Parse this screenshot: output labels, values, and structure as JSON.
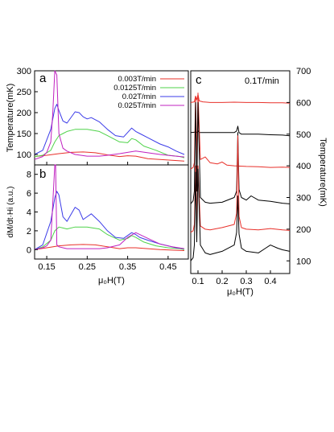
{
  "chart_data": [
    {
      "panel": "a",
      "type": "line",
      "ylabel": "Temperature(mK)",
      "xlim": [
        0.12,
        0.5
      ],
      "ylim": [
        75,
        300
      ],
      "yticks": [
        100,
        150,
        200,
        250,
        300
      ],
      "legend_placement": "top-right",
      "series": [
        {
          "name": "0.003T/min",
          "color": "#e8302a",
          "x": [
            0.12,
            0.15,
            0.18,
            0.21,
            0.24,
            0.27,
            0.3,
            0.33,
            0.35,
            0.37,
            0.4,
            0.43,
            0.46,
            0.49
          ],
          "y": [
            95,
            98,
            102,
            105,
            106,
            104,
            99,
            95,
            97,
            96,
            90,
            88,
            86,
            84
          ]
        },
        {
          "name": "0.0125T/min",
          "color": "#4fd34a",
          "x": [
            0.12,
            0.14,
            0.16,
            0.17,
            0.18,
            0.19,
            0.2,
            0.22,
            0.25,
            0.28,
            0.3,
            0.33,
            0.35,
            0.36,
            0.37,
            0.39,
            0.42,
            0.45,
            0.48,
            0.49
          ],
          "y": [
            95,
            98,
            110,
            130,
            145,
            150,
            155,
            160,
            160,
            155,
            145,
            130,
            128,
            138,
            135,
            120,
            110,
            98,
            95,
            92
          ]
        },
        {
          "name": "0.02T/min",
          "color": "#3b3be8",
          "x": [
            0.12,
            0.14,
            0.16,
            0.17,
            0.175,
            0.18,
            0.19,
            0.2,
            0.22,
            0.23,
            0.24,
            0.25,
            0.26,
            0.28,
            0.3,
            0.32,
            0.34,
            0.36,
            0.37,
            0.38,
            0.4,
            0.43,
            0.45,
            0.47,
            0.49
          ],
          "y": [
            100,
            110,
            160,
            210,
            220,
            205,
            180,
            175,
            202,
            200,
            190,
            185,
            188,
            178,
            160,
            145,
            142,
            163,
            155,
            150,
            140,
            125,
            118,
            108,
            100
          ]
        },
        {
          "name": "0.025T/min",
          "color": "#c020c0",
          "x": [
            0.12,
            0.14,
            0.15,
            0.16,
            0.165,
            0.17,
            0.175,
            0.18,
            0.19,
            0.2,
            0.22,
            0.25,
            0.28,
            0.3,
            0.33,
            0.35,
            0.37,
            0.4,
            0.43,
            0.46,
            0.49
          ],
          "y": [
            88,
            95,
            105,
            130,
            200,
            300,
            290,
            150,
            115,
            108,
            100,
            96,
            96,
            98,
            102,
            105,
            108,
            104,
            100,
            97,
            94
          ]
        }
      ]
    },
    {
      "panel": "b",
      "type": "line",
      "xlabel": "μ₀H(T)",
      "ylabel": "dM/dt·Hi (a.u.)",
      "xlim": [
        0.12,
        0.5
      ],
      "ylim": [
        -1,
        9
      ],
      "yticks": [
        0,
        2,
        4,
        6,
        8
      ],
      "xticks": [
        0.15,
        0.25,
        0.35,
        0.45
      ],
      "series": [
        {
          "name": "0.003T/min",
          "color": "#e8302a",
          "x": [
            0.12,
            0.15,
            0.18,
            0.21,
            0.24,
            0.27,
            0.3,
            0.33,
            0.35,
            0.37,
            0.4,
            0.43,
            0.46,
            0.49
          ],
          "y": [
            0.0,
            0.2,
            0.4,
            0.5,
            0.55,
            0.5,
            0.3,
            0.1,
            0.2,
            0.2,
            0.1,
            0.0,
            -0.05,
            -0.1
          ]
        },
        {
          "name": "0.0125T/min",
          "color": "#4fd34a",
          "x": [
            0.12,
            0.14,
            0.16,
            0.17,
            0.18,
            0.19,
            0.2,
            0.22,
            0.25,
            0.28,
            0.3,
            0.33,
            0.35,
            0.36,
            0.37,
            0.39,
            0.42,
            0.45,
            0.48,
            0.49
          ],
          "y": [
            0.0,
            0.3,
            1.0,
            2.0,
            2.4,
            2.3,
            2.2,
            2.4,
            2.4,
            2.2,
            1.6,
            1.0,
            1.2,
            1.5,
            1.3,
            0.8,
            0.4,
            0.2,
            0.1,
            0.0
          ]
        },
        {
          "name": "0.02T/min",
          "color": "#3b3be8",
          "x": [
            0.12,
            0.14,
            0.16,
            0.17,
            0.175,
            0.18,
            0.19,
            0.2,
            0.22,
            0.23,
            0.24,
            0.25,
            0.26,
            0.28,
            0.3,
            0.32,
            0.34,
            0.36,
            0.37,
            0.38,
            0.4,
            0.43,
            0.45,
            0.47,
            0.49
          ],
          "y": [
            0.0,
            0.5,
            3.0,
            5.5,
            6.2,
            5.8,
            3.5,
            3.0,
            4.5,
            4.2,
            3.2,
            3.5,
            3.8,
            3.0,
            2.0,
            1.3,
            1.2,
            1.8,
            1.6,
            1.3,
            1.0,
            0.6,
            0.4,
            0.2,
            0.1
          ]
        },
        {
          "name": "0.025T/min",
          "color": "#c020c0",
          "x": [
            0.12,
            0.14,
            0.15,
            0.16,
            0.17,
            0.172,
            0.175,
            0.18,
            0.19,
            0.2,
            0.22,
            0.25,
            0.28,
            0.3,
            0.33,
            0.35,
            0.37,
            0.4,
            0.43,
            0.46,
            0.49
          ],
          "y": [
            0.0,
            0.2,
            0.4,
            1.0,
            9.0,
            9.0,
            0.5,
            0.3,
            0.2,
            0.1,
            0.1,
            0.1,
            0.1,
            0.2,
            0.5,
            1.3,
            1.8,
            1.2,
            0.6,
            0.3,
            0.1
          ]
        }
      ]
    },
    {
      "panel": "c",
      "type": "line",
      "annotation": "0.1T/min",
      "xlabel": "μ₀H(T)",
      "ylabel": "Temperature(mK)",
      "xlim": [
        0.07,
        0.48
      ],
      "ylim": [
        60,
        700
      ],
      "xticks": [
        0.1,
        0.2,
        0.3,
        0.4
      ],
      "yticks": [
        100,
        200,
        300,
        400,
        500,
        600,
        700
      ],
      "series": [
        {
          "color": "#e8302a",
          "x": [
            0.07,
            0.085,
            0.09,
            0.095,
            0.1,
            0.105,
            0.12,
            0.15,
            0.2,
            0.25,
            0.3,
            0.35,
            0.4,
            0.45,
            0.48
          ],
          "y": [
            600,
            602,
            620,
            608,
            625,
            605,
            602,
            600,
            600,
            601,
            600,
            600,
            599,
            599,
            598
          ]
        },
        {
          "color": "#000000",
          "x": [
            0.07,
            0.085,
            0.09,
            0.095,
            0.1,
            0.105,
            0.12,
            0.15,
            0.2,
            0.25,
            0.26,
            0.265,
            0.27,
            0.28,
            0.3,
            0.35,
            0.4,
            0.45,
            0.48
          ],
          "y": [
            505,
            506,
            508,
            505,
            510,
            505,
            505,
            505,
            505,
            505,
            510,
            525,
            505,
            500,
            500,
            500,
            498,
            497,
            495
          ]
        },
        {
          "color": "#e8302a",
          "x": [
            0.07,
            0.08,
            0.085,
            0.09,
            0.095,
            0.1,
            0.11,
            0.13,
            0.15,
            0.18,
            0.2,
            0.22,
            0.25,
            0.3,
            0.35,
            0.4,
            0.45,
            0.48
          ],
          "y": [
            390,
            395,
            410,
            620,
            410,
            630,
            420,
            428,
            410,
            406,
            412,
            402,
            400,
            398,
            397,
            395,
            396,
            395
          ]
        },
        {
          "color": "#000000",
          "x": [
            0.07,
            0.08,
            0.085,
            0.09,
            0.095,
            0.1,
            0.11,
            0.13,
            0.15,
            0.2,
            0.25,
            0.26,
            0.265,
            0.27,
            0.28,
            0.3,
            0.32,
            0.35,
            0.4,
            0.45,
            0.48
          ],
          "y": [
            280,
            290,
            320,
            600,
            320,
            600,
            300,
            285,
            282,
            285,
            300,
            320,
            505,
            325,
            300,
            292,
            305,
            292,
            288,
            282,
            280
          ]
        },
        {
          "color": "#e8302a",
          "x": [
            0.07,
            0.08,
            0.085,
            0.09,
            0.095,
            0.1,
            0.11,
            0.13,
            0.15,
            0.2,
            0.25,
            0.26,
            0.265,
            0.27,
            0.28,
            0.3,
            0.35,
            0.4,
            0.45,
            0.48
          ],
          "y": [
            190,
            195,
            215,
            400,
            215,
            400,
            210,
            200,
            198,
            205,
            215,
            250,
            495,
            240,
            205,
            200,
            198,
            202,
            198,
            196
          ]
        },
        {
          "color": "#000000",
          "x": [
            0.07,
            0.08,
            0.085,
            0.09,
            0.095,
            0.1,
            0.11,
            0.13,
            0.15,
            0.2,
            0.25,
            0.26,
            0.265,
            0.27,
            0.28,
            0.3,
            0.35,
            0.38,
            0.4,
            0.43,
            0.45,
            0.48
          ],
          "y": [
            100,
            110,
            150,
            380,
            160,
            390,
            150,
            125,
            120,
            130,
            150,
            190,
            305,
            185,
            140,
            130,
            125,
            140,
            150,
            140,
            135,
            130
          ]
        }
      ]
    }
  ],
  "labels": {
    "panel_a": "a",
    "panel_b": "b",
    "panel_c": "c"
  }
}
